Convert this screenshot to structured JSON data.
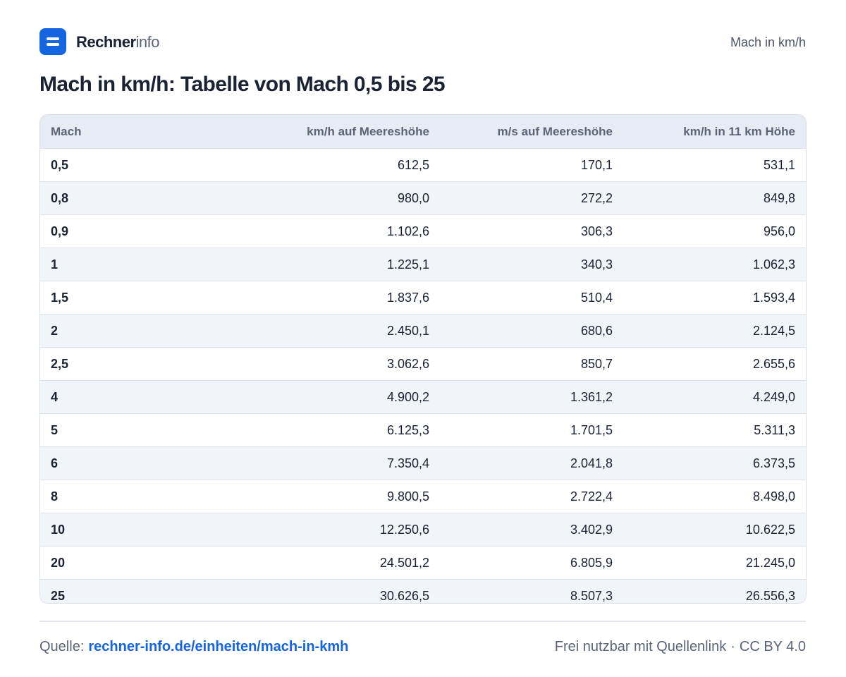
{
  "header": {
    "brand_strong": "Rechner",
    "brand_light": "info",
    "right_label": "Mach in km/h"
  },
  "title": "Mach in km/h: Tabelle von Mach 0,5 bis 25",
  "table": {
    "columns": [
      "Mach",
      "km/h auf Meereshöhe",
      "m/s auf Meereshöhe",
      "km/h in 11 km Höhe"
    ],
    "rows": [
      [
        "0,5",
        "612,5",
        "170,1",
        "531,1"
      ],
      [
        "0,8",
        "980,0",
        "272,2",
        "849,8"
      ],
      [
        "0,9",
        "1.102,6",
        "306,3",
        "956,0"
      ],
      [
        "1",
        "1.225,1",
        "340,3",
        "1.062,3"
      ],
      [
        "1,5",
        "1.837,6",
        "510,4",
        "1.593,4"
      ],
      [
        "2",
        "2.450,1",
        "680,6",
        "2.124,5"
      ],
      [
        "2,5",
        "3.062,6",
        "850,7",
        "2.655,6"
      ],
      [
        "4",
        "4.900,2",
        "1.361,2",
        "4.249,0"
      ],
      [
        "5",
        "6.125,3",
        "1.701,5",
        "5.311,3"
      ],
      [
        "6",
        "7.350,4",
        "2.041,8",
        "6.373,5"
      ],
      [
        "8",
        "9.800,5",
        "2.722,4",
        "8.498,0"
      ],
      [
        "10",
        "12.250,6",
        "3.402,9",
        "10.622,5"
      ],
      [
        "20",
        "24.501,2",
        "6.805,9",
        "21.245,0"
      ],
      [
        "25",
        "30.626,5",
        "8.507,3",
        "26.556,3"
      ]
    ]
  },
  "footer": {
    "source_label": "Quelle:",
    "source_link": "rechner-info.de/einheiten/mach-in-kmh",
    "usage": "Frei nutzbar mit Quellenlink",
    "separator": "·",
    "license": "CC BY 4.0"
  },
  "colors": {
    "accent": "#1565e0",
    "text": "#1a2233",
    "muted": "#5b6577",
    "header_bg": "#e6ecf3",
    "stripe_bg": "#f1f5f9"
  }
}
